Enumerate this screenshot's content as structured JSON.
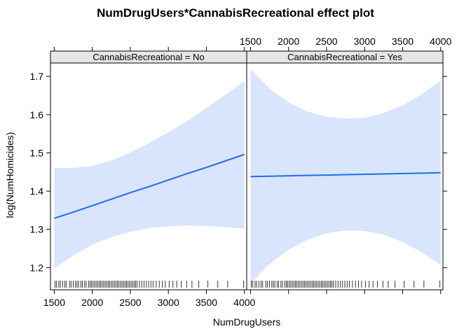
{
  "chart_data": {
    "type": "line",
    "title": "NumDrugUsers*CannabisRecreational effect plot",
    "xlabel": "NumDrugUsers",
    "ylabel": "log(NumHomicides)",
    "xlim": [
      1450,
      4030
    ],
    "ylim": [
      1.142,
      1.735
    ],
    "x_ticks": [
      1500,
      2000,
      2500,
      3000,
      3500,
      4000
    ],
    "y_ticks": [
      1.2,
      1.3,
      1.4,
      1.5,
      1.6,
      1.7
    ],
    "x_tick_labels": [
      "1500",
      "2000",
      "2500",
      "3000",
      "3500",
      "4000"
    ],
    "y_tick_labels": [
      "1.2",
      "1.3",
      "1.4",
      "1.5",
      "1.6",
      "1.7"
    ],
    "line_color": "#1c6de8",
    "band_color": "#d9e5fc",
    "strip_color": "#e6e6e6",
    "panels": [
      {
        "strip_label": "CannabisRecreational = No",
        "x": [
          1500,
          1750,
          2000,
          2250,
          2500,
          2750,
          3000,
          3250,
          3500,
          3750,
          4000
        ],
        "fit": [
          1.329,
          1.345,
          1.362,
          1.379,
          1.396,
          1.412,
          1.429,
          1.446,
          1.462,
          1.479,
          1.496
        ],
        "lower": [
          1.198,
          1.232,
          1.26,
          1.28,
          1.294,
          1.303,
          1.308,
          1.31,
          1.309,
          1.306,
          1.302
        ],
        "upper": [
          1.46,
          1.461,
          1.466,
          1.48,
          1.501,
          1.526,
          1.554,
          1.584,
          1.617,
          1.652,
          1.688
        ]
      },
      {
        "strip_label": "CannabisRecreational = Yes",
        "x": [
          1500,
          1750,
          2000,
          2250,
          2500,
          2750,
          3000,
          3250,
          3500,
          3750,
          4000
        ],
        "fit": [
          1.438,
          1.439,
          1.44,
          1.441,
          1.442,
          1.443,
          1.444,
          1.445,
          1.446,
          1.447,
          1.448
        ],
        "lower": [
          1.158,
          1.209,
          1.247,
          1.273,
          1.29,
          1.297,
          1.296,
          1.286,
          1.267,
          1.24,
          1.207
        ],
        "upper": [
          1.718,
          1.668,
          1.632,
          1.608,
          1.594,
          1.59,
          1.592,
          1.604,
          1.624,
          1.653,
          1.689
        ]
      }
    ],
    "rug": [
      1510,
      1530,
      1560,
      1580,
      1610,
      1640,
      1660,
      1700,
      1720,
      1750,
      1780,
      1800,
      1820,
      1850,
      1870,
      1900,
      1920,
      1950,
      1970,
      1990,
      2010,
      2030,
      2050,
      2070,
      2090,
      2110,
      2130,
      2150,
      2170,
      2190,
      2210,
      2230,
      2250,
      2270,
      2290,
      2310,
      2330,
      2350,
      2370,
      2390,
      2410,
      2430,
      2450,
      2470,
      2490,
      2510,
      2530,
      2550,
      2570,
      2590,
      2620,
      2650,
      2680,
      2710,
      2740,
      2770,
      2800,
      2840,
      2880,
      2920,
      2960,
      3010,
      3060,
      3110,
      3170,
      3240,
      3310,
      3400,
      3520,
      3650,
      3780,
      3990
    ]
  }
}
